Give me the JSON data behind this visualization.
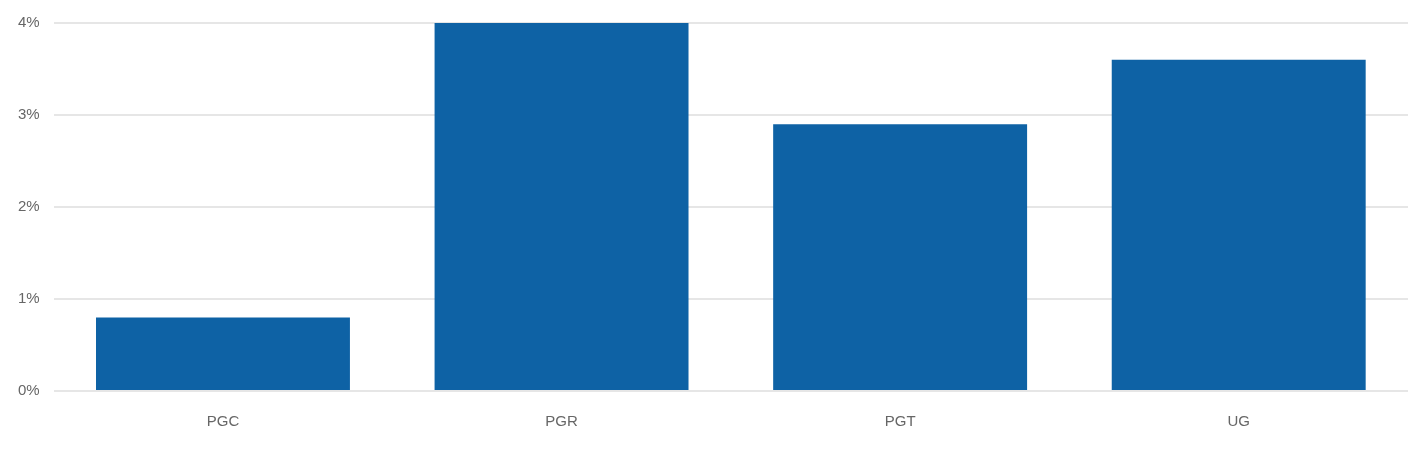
{
  "chart_data": {
    "type": "bar",
    "categories": [
      "PGC",
      "PGR",
      "PGT",
      "UG"
    ],
    "values": [
      0.8,
      4.0,
      2.9,
      3.6
    ],
    "color": "#0e62a5",
    "ylim": [
      0,
      4
    ],
    "yticks": [
      {
        "value": 0,
        "label": "0%"
      },
      {
        "value": 1,
        "label": "1%"
      },
      {
        "value": 2,
        "label": "2%"
      },
      {
        "value": 3,
        "label": "3%"
      },
      {
        "value": 4,
        "label": "4%"
      }
    ],
    "grid": "y",
    "legend": false
  }
}
